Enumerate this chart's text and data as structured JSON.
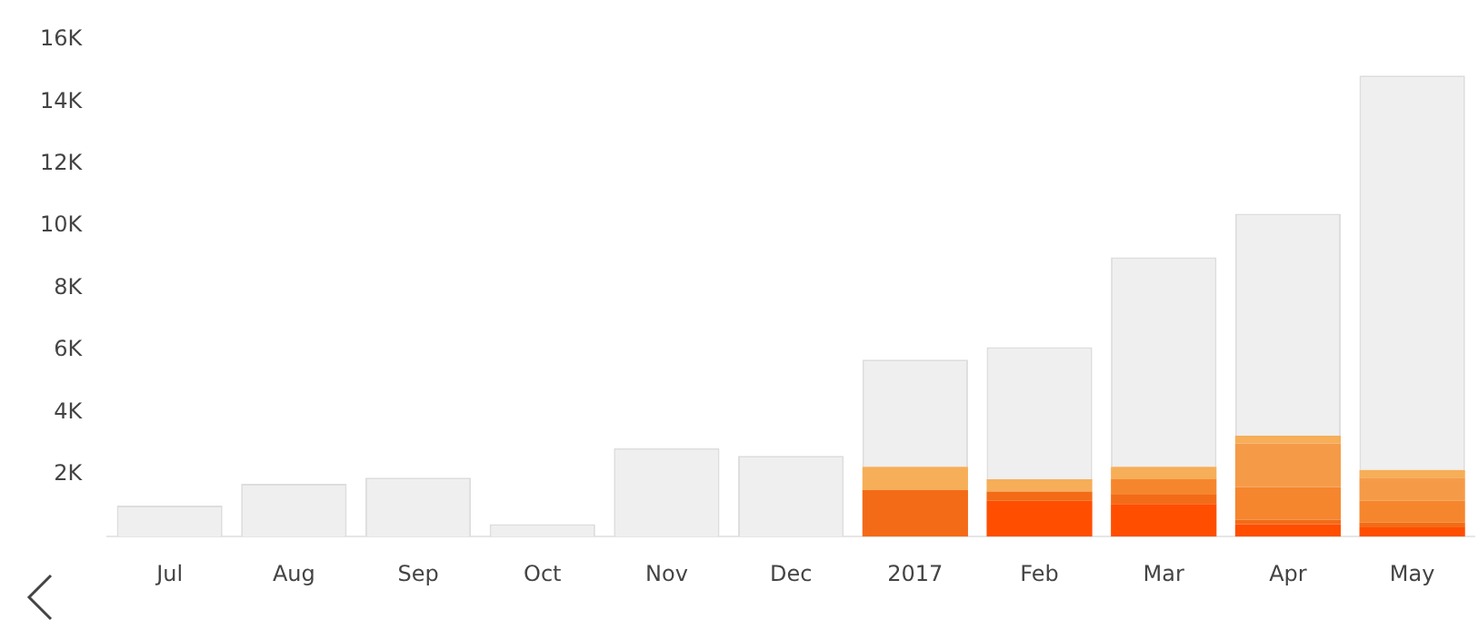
{
  "chart_data": {
    "type": "bar",
    "stacked": true,
    "categories": [
      "Jul",
      "Aug",
      "Sep",
      "Oct",
      "Nov",
      "Dec",
      "2017",
      "Feb",
      "Mar",
      "Apr",
      "May"
    ],
    "series": [
      {
        "color": "#ff4e00",
        "values": [
          0,
          0,
          0,
          0,
          0,
          0,
          0,
          1150,
          1050,
          400,
          300
        ]
      },
      {
        "color": "#f36b17",
        "values": [
          0,
          0,
          0,
          0,
          0,
          0,
          1500,
          300,
          300,
          150,
          150
        ]
      },
      {
        "color": "#f5862e",
        "values": [
          0,
          0,
          0,
          0,
          0,
          0,
          0,
          0,
          500,
          1050,
          700
        ]
      },
      {
        "color": "#f59b48",
        "values": [
          0,
          0,
          0,
          0,
          0,
          0,
          0,
          0,
          0,
          1400,
          750
        ]
      },
      {
        "color": "#f6ae58",
        "values": [
          0,
          0,
          0,
          0,
          0,
          0,
          750,
          400,
          400,
          250,
          250
        ]
      },
      {
        "color": "#efefef",
        "values": [
          1000,
          1700,
          1900,
          400,
          2850,
          2600,
          3450,
          4250,
          6750,
          7150,
          12700
        ]
      }
    ],
    "ylim": [
      0,
      16000
    ],
    "yticks": [
      {
        "value": 2000,
        "label": "2K"
      },
      {
        "value": 4000,
        "label": "4K"
      },
      {
        "value": 6000,
        "label": "6K"
      },
      {
        "value": 8000,
        "label": "8K"
      },
      {
        "value": 10000,
        "label": "10K"
      },
      {
        "value": 12000,
        "label": "12K"
      },
      {
        "value": 14000,
        "label": "14K"
      },
      {
        "value": 16000,
        "label": "16K"
      }
    ],
    "grid": false,
    "legend": false
  }
}
